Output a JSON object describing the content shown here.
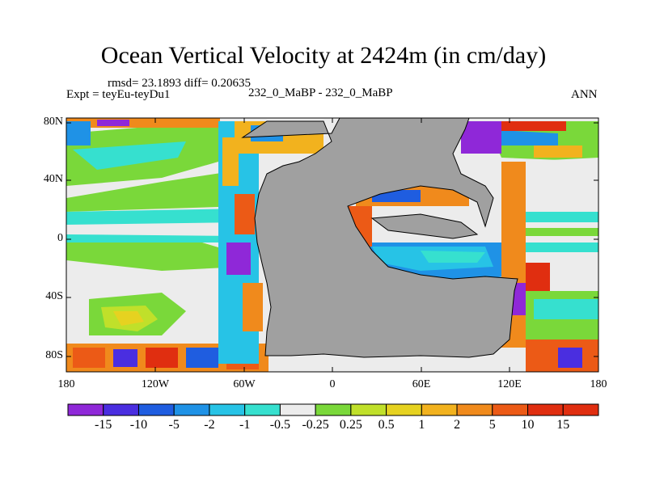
{
  "title": "Ocean Vertical Velocity at 2424m (in cm/day)",
  "stats_line": "rmsd= 23.1893 diff= 0.20635",
  "expt_label": "Expt = teyEu-teyDu1",
  "case_label": "232_0_MaBP - 232_0_MaBP",
  "season_label": "ANN",
  "lat_ticks": [
    "80N",
    "40N",
    "0",
    "40S",
    "80S"
  ],
  "lon_ticks": [
    "180",
    "120W",
    "60W",
    "0",
    "60E",
    "120E",
    "180"
  ],
  "colorbar": {
    "labels": [
      "-15",
      "-10",
      "-5",
      "-2",
      "-1",
      "-0.5",
      "-0.25",
      "0.25",
      "0.5",
      "1",
      "2",
      "5",
      "10",
      "15"
    ],
    "colors": [
      "#8f28d8",
      "#4a2ee0",
      "#1f5de0",
      "#1f92e6",
      "#27c3e6",
      "#36e0cf",
      "#ececec",
      "#7ad83a",
      "#c0e02a",
      "#e6d220",
      "#f2b21e",
      "#f08a1c",
      "#ec5a16",
      "#e02e10"
    ]
  },
  "palette": {
    "land": "#a0a0a0",
    "near_zero": "#ececec"
  }
}
